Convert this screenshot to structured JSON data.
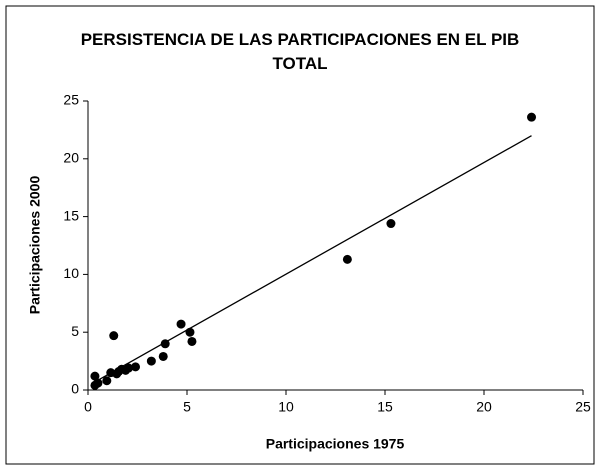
{
  "chart_data": {
    "type": "scatter",
    "title": "PERSISTENCIA DE LAS PARTICIPACIONES EN EL PIB TOTAL",
    "xlabel": "Participaciones 1975",
    "ylabel": "Participaciones 2000",
    "x": [
      0.35,
      0.35,
      0.5,
      0.95,
      1.15,
      1.3,
      1.45,
      1.55,
      1.7,
      1.9,
      2.05,
      2.4,
      3.2,
      3.8,
      3.9,
      4.7,
      5.15,
      5.25,
      13.1,
      15.3,
      22.4
    ],
    "series": [
      {
        "color": "#000000",
        "values": [
          1.2,
          0.4,
          0.6,
          0.8,
          1.5,
          4.7,
          1.4,
          1.6,
          1.8,
          1.7,
          1.9,
          2.0,
          2.5,
          2.9,
          4.0,
          5.7,
          5.0,
          4.2,
          11.3,
          14.4,
          23.6
        ]
      }
    ],
    "trendline": {
      "x": [
        0.35,
        22.4
      ],
      "y": [
        0.7,
        22.0
      ],
      "color": "#000000"
    },
    "xlim": [
      0,
      25
    ],
    "ylim": [
      0,
      25
    ],
    "xticks": [
      0,
      5,
      10,
      15,
      20,
      25
    ],
    "yticks": [
      0,
      5,
      10,
      15,
      20,
      25
    ],
    "grid": false
  }
}
